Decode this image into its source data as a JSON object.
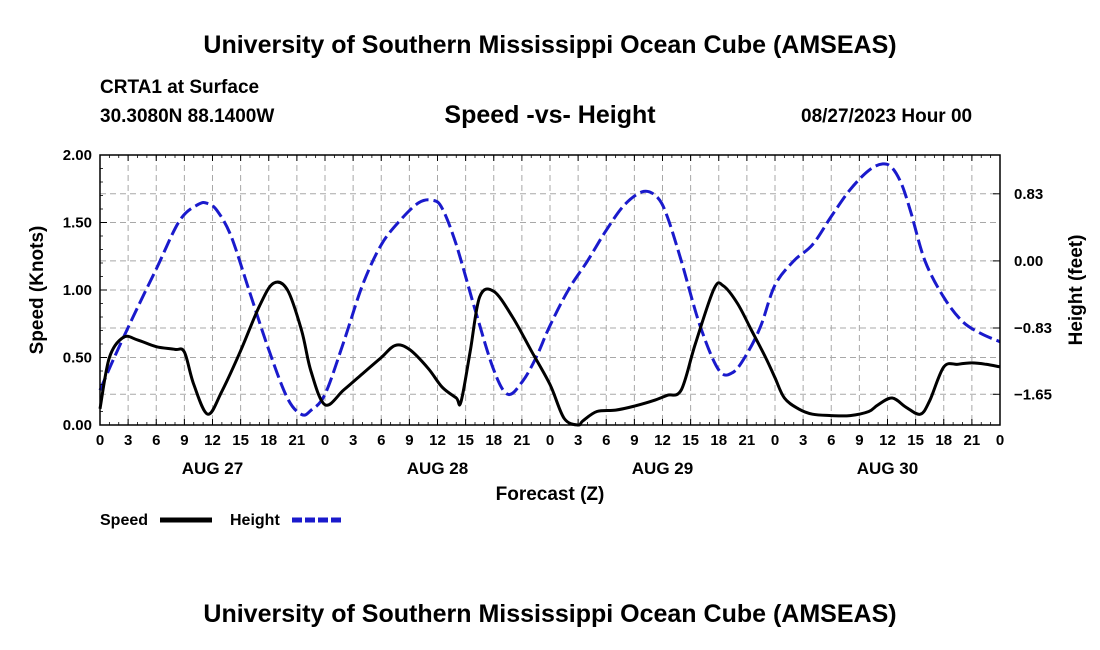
{
  "header": {
    "title_top": "University of Southern Mississippi Ocean Cube (AMSEAS)",
    "station": "CRTA1 at Surface",
    "coords": "30.3080N  88.1400W",
    "subtitle": "Speed -vs- Height",
    "datetime": "08/27/2023 Hour 00",
    "title_bottom": "University of Southern Mississippi Ocean Cube (AMSEAS)"
  },
  "chart_data": {
    "type": "line",
    "title": "Speed -vs- Height",
    "xlabel": "Forecast (Z)",
    "ylabel": "Speed (Knots)",
    "y2label": "Height (feet)",
    "xlim": [
      0,
      96
    ],
    "ylim": [
      0,
      2.0
    ],
    "y2lim": [
      -2.03,
      1.31
    ],
    "x_tick_labels": [
      "0",
      "3",
      "6",
      "9",
      "12",
      "15",
      "18",
      "21",
      "0",
      "3",
      "6",
      "9",
      "12",
      "15",
      "18",
      "21",
      "0",
      "3",
      "6",
      "9",
      "12",
      "15",
      "18",
      "21",
      "0",
      "3",
      "6",
      "9",
      "12",
      "15",
      "18",
      "21",
      "0"
    ],
    "day_labels": [
      {
        "x": 12,
        "label": "AUG 27"
      },
      {
        "x": 36,
        "label": "AUG 28"
      },
      {
        "x": 60,
        "label": "AUG 29"
      },
      {
        "x": 84,
        "label": "AUG 30"
      }
    ],
    "y_ticks": [
      0,
      0.5,
      1.0,
      1.5,
      2.0
    ],
    "y_tick_labels": [
      "0.00",
      "0.50",
      "1.00",
      "1.50",
      "2.00"
    ],
    "y2_ticks": [
      0.83,
      0,
      -0.83,
      -1.65
    ],
    "y2_tick_labels": [
      "0.83",
      "0.00",
      "−0.83",
      "−1.65"
    ],
    "grid": true,
    "legend_position": "bottom-left",
    "series": [
      {
        "name": "Speed",
        "axis": "left",
        "color": "#000000",
        "dash": "solid",
        "x": [
          0,
          1,
          2.5,
          4,
          6,
          8,
          9,
          10,
          11.5,
          13,
          15,
          17,
          18.5,
          20,
          21.5,
          22.5,
          24,
          26,
          28,
          30,
          31.5,
          33,
          35,
          36.5,
          38,
          38.5,
          39.5,
          40.5,
          42,
          44,
          46,
          48,
          49.5,
          51,
          51.5,
          53,
          55,
          57,
          59,
          60.5,
          62,
          63.5,
          65.5,
          66.5,
          68,
          69.5,
          71,
          72,
          73,
          74.5,
          76,
          78,
          80,
          82,
          83,
          84.5,
          86,
          87.5,
          88.5,
          90,
          91.5,
          93,
          94.5,
          96
        ],
        "values": [
          0.12,
          0.5,
          0.65,
          0.63,
          0.58,
          0.56,
          0.54,
          0.3,
          0.08,
          0.25,
          0.55,
          0.88,
          1.05,
          1.0,
          0.7,
          0.4,
          0.15,
          0.26,
          0.38,
          0.5,
          0.59,
          0.56,
          0.42,
          0.28,
          0.2,
          0.17,
          0.55,
          0.95,
          0.99,
          0.8,
          0.55,
          0.3,
          0.05,
          0.0,
          0.03,
          0.1,
          0.11,
          0.14,
          0.18,
          0.22,
          0.26,
          0.6,
          1.01,
          1.03,
          0.9,
          0.7,
          0.5,
          0.35,
          0.2,
          0.12,
          0.08,
          0.07,
          0.07,
          0.1,
          0.15,
          0.2,
          0.13,
          0.08,
          0.18,
          0.43,
          0.45,
          0.46,
          0.45,
          0.43
        ]
      },
      {
        "name": "Height",
        "axis": "right",
        "color": "#1a1acc",
        "dash": "dashed",
        "x": [
          0,
          1.5,
          3.5,
          6,
          8.5,
          10.5,
          11.5,
          12.5,
          14,
          16,
          18,
          20,
          21.5,
          22.5,
          24,
          26,
          28,
          30,
          32,
          34,
          35.5,
          36.5,
          38,
          40,
          42,
          43.5,
          45,
          46.5,
          48,
          50,
          52,
          54,
          56,
          58,
          59.5,
          60.5,
          62,
          64,
          66,
          67.5,
          69,
          70.5,
          72,
          74,
          76,
          78,
          80,
          82,
          83.5,
          84.5,
          85.5,
          86.5,
          88,
          90,
          92,
          94,
          96
        ],
        "values": [
          -1.6,
          -1.2,
          -0.7,
          -0.1,
          0.5,
          0.7,
          0.71,
          0.62,
          0.3,
          -0.4,
          -1.1,
          -1.7,
          -1.9,
          -1.85,
          -1.65,
          -1.0,
          -0.3,
          0.2,
          0.5,
          0.72,
          0.75,
          0.65,
          0.2,
          -0.6,
          -1.35,
          -1.65,
          -1.5,
          -1.2,
          -0.8,
          -0.35,
          0.0,
          0.38,
          0.7,
          0.86,
          0.78,
          0.55,
          0.0,
          -0.8,
          -1.35,
          -1.38,
          -1.15,
          -0.8,
          -0.3,
          0.0,
          0.2,
          0.55,
          0.88,
          1.12,
          1.2,
          1.15,
          0.95,
          0.6,
          0.0,
          -0.45,
          -0.75,
          -0.9,
          -1.0
        ]
      }
    ]
  }
}
